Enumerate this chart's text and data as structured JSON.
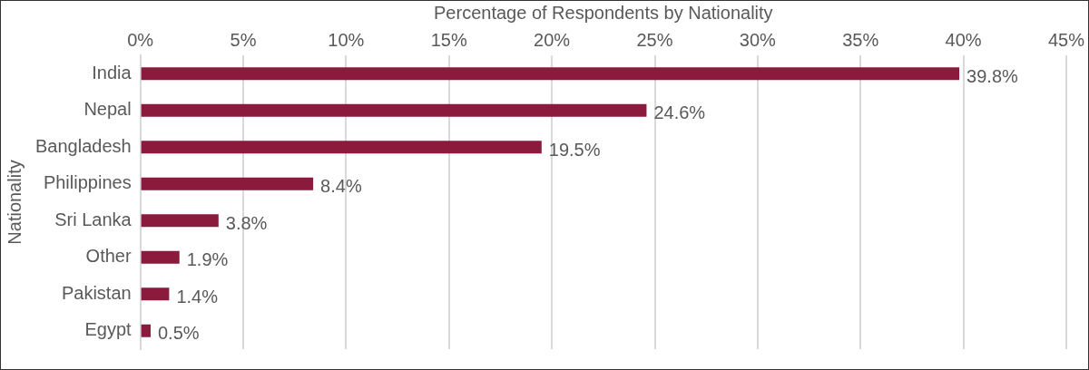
{
  "chart_data": {
    "type": "bar",
    "orientation": "horizontal",
    "xlabel": "Percentage of Respondents by Nationality",
    "ylabel": "Nationality",
    "categories": [
      "India",
      "Nepal",
      "Bangladesh",
      "Philippines",
      "Sri Lanka",
      "Other",
      "Pakistan",
      "Egypt"
    ],
    "values": [
      39.8,
      24.6,
      19.5,
      8.4,
      3.8,
      1.9,
      1.4,
      0.5
    ],
    "value_labels": [
      "39.8%",
      "24.6%",
      "19.5%",
      "8.4%",
      "3.8%",
      "1.9%",
      "1.4%",
      "0.5%"
    ],
    "color": "#8b1a3c",
    "xlim": [
      0,
      45
    ],
    "xticks": [
      {
        "value": 0,
        "label": "0%"
      },
      {
        "value": 5,
        "label": "5%"
      },
      {
        "value": 10,
        "label": "10%"
      },
      {
        "value": 15,
        "label": "15%"
      },
      {
        "value": 20,
        "label": "20%"
      },
      {
        "value": 25,
        "label": "25%"
      },
      {
        "value": 30,
        "label": "30%"
      },
      {
        "value": 35,
        "label": "35%"
      },
      {
        "value": 40,
        "label": "40%"
      },
      {
        "value": 45,
        "label": "45%"
      }
    ],
    "grid": "x",
    "legend": false
  }
}
